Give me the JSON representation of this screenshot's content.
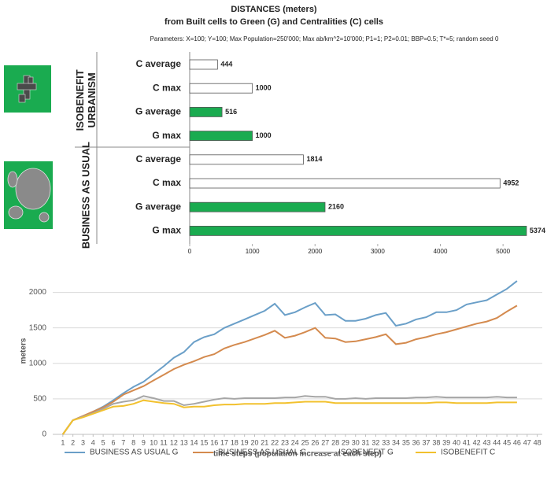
{
  "chart_data": [
    {
      "type": "bar",
      "orientation": "horizontal",
      "title": "DISTANCES (meters)",
      "subtitle": "from Built cells to Green (G) and Centralities (C) cells",
      "annotation": "Parameters:  X=100; Y=100; Max Population=250'000; Max ab/km^2=10'000; P1=1; P2=0.01; BBP=0.5; T*=5; random seed 0",
      "groups": [
        {
          "label": [
            "ISOBENEFIT",
            "URBANISM"
          ],
          "categories": [
            "C average",
            "C max",
            "G average",
            "G max"
          ],
          "values": [
            444,
            1000,
            516,
            1000
          ],
          "colors": [
            "#ffffff",
            "#ffffff",
            "#1aab50",
            "#1aab50"
          ]
        },
        {
          "label": [
            "BUSINESS AS USUAL"
          ],
          "categories": [
            "C average",
            "C max",
            "G average",
            "G max"
          ],
          "values": [
            1814,
            4952,
            2160,
            5374
          ],
          "colors": [
            "#ffffff",
            "#ffffff",
            "#1aab50",
            "#1aab50"
          ]
        }
      ],
      "xlim": [
        0,
        5400
      ],
      "xticks": [
        0,
        1000,
        2000,
        3000,
        4000,
        5000
      ]
    },
    {
      "type": "line",
      "xlabel": "time steps (population increase at each step)",
      "ylabel": "meters",
      "x": [
        1,
        2,
        3,
        4,
        5,
        6,
        7,
        8,
        9,
        10,
        11,
        12,
        13,
        14,
        15,
        16,
        17,
        18,
        19,
        20,
        21,
        22,
        23,
        24,
        25,
        26,
        27,
        28,
        29,
        30,
        31,
        32,
        33,
        34,
        35,
        36,
        37,
        38,
        39,
        40,
        41,
        42,
        43,
        44,
        45,
        46
      ],
      "xlim": [
        0,
        48.5
      ],
      "xticks": [
        1,
        2,
        3,
        4,
        5,
        6,
        7,
        8,
        9,
        10,
        11,
        12,
        13,
        14,
        15,
        16,
        17,
        18,
        19,
        20,
        21,
        22,
        23,
        24,
        25,
        26,
        27,
        28,
        29,
        30,
        31,
        32,
        33,
        34,
        35,
        36,
        37,
        38,
        39,
        40,
        41,
        42,
        43,
        44,
        45,
        46,
        47,
        48
      ],
      "ylim": [
        0,
        2350
      ],
      "yticks": [
        0,
        500,
        1000,
        1500,
        2000
      ],
      "grid": true,
      "legend": "bottom",
      "series": [
        {
          "name": "BUSINESS AS USUAL G",
          "color": "#6a9fc8",
          "values": [
            0,
            200,
            250,
            320,
            390,
            480,
            580,
            670,
            740,
            850,
            960,
            1080,
            1160,
            1300,
            1370,
            1410,
            1500,
            1560,
            1620,
            1680,
            1740,
            1840,
            1680,
            1720,
            1790,
            1850,
            1680,
            1690,
            1600,
            1600,
            1630,
            1680,
            1710,
            1530,
            1560,
            1620,
            1650,
            1720,
            1720,
            1750,
            1830,
            1860,
            1890,
            1970,
            2050,
            2160
          ]
        },
        {
          "name": "BUSINESS AS USUAL C",
          "color": "#d48a4e",
          "values": [
            0,
            200,
            260,
            320,
            380,
            460,
            560,
            620,
            680,
            760,
            840,
            920,
            980,
            1030,
            1090,
            1130,
            1210,
            1260,
            1300,
            1350,
            1400,
            1460,
            1360,
            1390,
            1440,
            1500,
            1360,
            1350,
            1300,
            1310,
            1340,
            1370,
            1410,
            1270,
            1290,
            1340,
            1370,
            1410,
            1440,
            1480,
            1520,
            1560,
            1590,
            1640,
            1730,
            1814
          ]
        },
        {
          "name": "ISOBENEFIT G",
          "color": "#a6a6a6",
          "values": [
            0,
            200,
            250,
            300,
            360,
            430,
            460,
            480,
            540,
            510,
            470,
            470,
            410,
            430,
            460,
            490,
            510,
            500,
            510,
            510,
            510,
            510,
            520,
            520,
            540,
            530,
            530,
            500,
            500,
            510,
            500,
            510,
            510,
            510,
            510,
            520,
            520,
            530,
            520,
            520,
            520,
            520,
            520,
            530,
            520,
            520
          ]
        },
        {
          "name": "ISOBENEFIT C",
          "color": "#f2c12e",
          "values": [
            0,
            200,
            240,
            290,
            340,
            390,
            400,
            430,
            480,
            460,
            440,
            430,
            380,
            390,
            390,
            410,
            420,
            420,
            430,
            430,
            430,
            440,
            440,
            450,
            460,
            460,
            460,
            440,
            440,
            440,
            440,
            440,
            440,
            440,
            440,
            440,
            440,
            450,
            450,
            440,
            440,
            440,
            440,
            450,
            450,
            450
          ]
        }
      ]
    }
  ]
}
